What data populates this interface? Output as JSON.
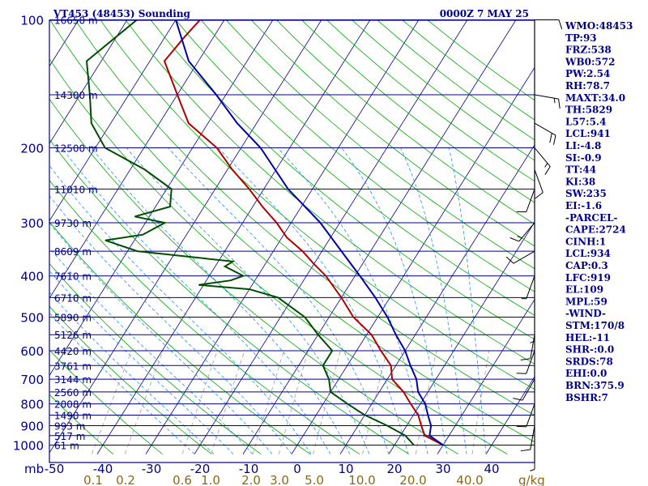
{
  "header": {
    "station": "VT453 (48453) Sounding",
    "time": "0000Z  7 MAY 25"
  },
  "chart_data": {
    "type": "skew-t",
    "y_scale": "log",
    "ylim": [
      1050,
      100
    ],
    "xlim": [
      -50,
      50
    ],
    "xlabel_prefix": "mb",
    "pressure_ticks": [
      {
        "value": 100,
        "label": "100"
      },
      {
        "value": 200,
        "label": "200"
      },
      {
        "value": 300,
        "label": "300"
      },
      {
        "value": 400,
        "label": "400"
      },
      {
        "value": 500,
        "label": "500"
      },
      {
        "value": 600,
        "label": "600"
      },
      {
        "value": 700,
        "label": "700"
      },
      {
        "value": 800,
        "label": "800"
      },
      {
        "value": 900,
        "label": "900"
      },
      {
        "value": 1000,
        "label": "1000"
      }
    ],
    "height_levels": [
      {
        "p": 100,
        "label": "16650 m"
      },
      {
        "p": 150,
        "label": "14300 m"
      },
      {
        "p": 200,
        "label": "12500 m"
      },
      {
        "p": 250,
        "label": "11010 m"
      },
      {
        "p": 300,
        "label": "9730 m"
      },
      {
        "p": 350,
        "label": "8609 m"
      },
      {
        "p": 400,
        "label": "7610 m"
      },
      {
        "p": 450,
        "label": "6710 m"
      },
      {
        "p": 500,
        "label": "5890 m"
      },
      {
        "p": 550,
        "label": "5126 m"
      },
      {
        "p": 600,
        "label": "4420 m"
      },
      {
        "p": 650,
        "label": "3761 m"
      },
      {
        "p": 700,
        "label": "3144 m"
      },
      {
        "p": 750,
        "label": "2560 m"
      },
      {
        "p": 800,
        "label": "2008 m"
      },
      {
        "p": 850,
        "label": "1490 m"
      },
      {
        "p": 900,
        "label": "993 m"
      },
      {
        "p": 950,
        "label": "517 m"
      },
      {
        "p": 1000,
        "label": "61 m"
      }
    ],
    "temp_ticks": [
      {
        "value": -50,
        "label": "-50"
      },
      {
        "value": -40,
        "label": "-40"
      },
      {
        "value": -30,
        "label": "-30"
      },
      {
        "value": -20,
        "label": "-20"
      },
      {
        "value": -10,
        "label": "-10"
      },
      {
        "value": 0,
        "label": "0"
      },
      {
        "value": 10,
        "label": "10"
      },
      {
        "value": 20,
        "label": "20"
      },
      {
        "value": 30,
        "label": "30"
      },
      {
        "value": 40,
        "label": "40"
      }
    ],
    "mixing_ratio_ticks": [
      {
        "value": 0.1,
        "label": "0.1"
      },
      {
        "value": 0.2,
        "label": "0.2"
      },
      {
        "value": 0.6,
        "label": "0.6"
      },
      {
        "value": 1.0,
        "label": "1.0"
      },
      {
        "value": 2.0,
        "label": "2.0"
      },
      {
        "value": 3.0,
        "label": "3.0"
      },
      {
        "value": 5.0,
        "label": "5.0"
      },
      {
        "value": 10.0,
        "label": "10.0"
      },
      {
        "value": 20.0,
        "label": "20.0"
      },
      {
        "value": 40.0,
        "label": "40.0"
      }
    ],
    "mixing_ratio_unit": "g/kg",
    "series": [
      {
        "kind": "temperature",
        "color": "#b20000",
        "points": [
          [
            100,
            -75
          ],
          [
            110,
            -76
          ],
          [
            125,
            -77
          ],
          [
            150,
            -70
          ],
          [
            175,
            -64
          ],
          [
            200,
            -55
          ],
          [
            225,
            -49
          ],
          [
            250,
            -43
          ],
          [
            275,
            -38
          ],
          [
            300,
            -33
          ],
          [
            325,
            -29
          ],
          [
            350,
            -24
          ],
          [
            375,
            -20
          ],
          [
            400,
            -16
          ],
          [
            450,
            -10
          ],
          [
            500,
            -5
          ],
          [
            550,
            1
          ],
          [
            600,
            5
          ],
          [
            650,
            9
          ],
          [
            700,
            11
          ],
          [
            750,
            15
          ],
          [
            800,
            18
          ],
          [
            850,
            21
          ],
          [
            900,
            23
          ],
          [
            950,
            25
          ],
          [
            1000,
            30
          ]
        ]
      },
      {
        "kind": "dewpoint",
        "color": "#004d00",
        "points": [
          [
            100,
            -88
          ],
          [
            125,
            -93
          ],
          [
            150,
            -88
          ],
          [
            175,
            -84
          ],
          [
            200,
            -78
          ],
          [
            225,
            -67
          ],
          [
            250,
            -59
          ],
          [
            275,
            -57
          ],
          [
            290,
            -63
          ],
          [
            300,
            -56
          ],
          [
            320,
            -59
          ],
          [
            330,
            -66
          ],
          [
            350,
            -58
          ],
          [
            370,
            -37
          ],
          [
            380,
            -38
          ],
          [
            400,
            -33
          ],
          [
            410,
            -35
          ],
          [
            420,
            -41
          ],
          [
            430,
            -30
          ],
          [
            450,
            -23
          ],
          [
            500,
            -15
          ],
          [
            550,
            -10
          ],
          [
            600,
            -5
          ],
          [
            650,
            -5
          ],
          [
            700,
            -2
          ],
          [
            750,
            0
          ],
          [
            800,
            5
          ],
          [
            850,
            10
          ],
          [
            900,
            16
          ],
          [
            950,
            21
          ],
          [
            1000,
            24
          ]
        ]
      },
      {
        "kind": "parcel",
        "color": "#0000aa",
        "points": [
          [
            100,
            -80
          ],
          [
            125,
            -72
          ],
          [
            150,
            -62
          ],
          [
            175,
            -54
          ],
          [
            200,
            -46
          ],
          [
            250,
            -35
          ],
          [
            300,
            -24
          ],
          [
            350,
            -16
          ],
          [
            400,
            -9
          ],
          [
            450,
            -3
          ],
          [
            500,
            2
          ],
          [
            550,
            6
          ],
          [
            600,
            10
          ],
          [
            650,
            13
          ],
          [
            700,
            16
          ],
          [
            750,
            18
          ],
          [
            800,
            21
          ],
          [
            850,
            23
          ],
          [
            900,
            25
          ],
          [
            950,
            26
          ],
          [
            1000,
            30
          ]
        ]
      }
    ],
    "wind_barbs": [
      {
        "p": 100,
        "dir": 90,
        "kt": 10
      },
      {
        "p": 150,
        "dir": 100,
        "kt": 15
      },
      {
        "p": 175,
        "dir": 120,
        "kt": 20
      },
      {
        "p": 200,
        "dir": 140,
        "kt": 15
      },
      {
        "p": 225,
        "dir": 160,
        "kt": 10
      },
      {
        "p": 250,
        "dir": 200,
        "kt": 10
      },
      {
        "p": 300,
        "dir": 220,
        "kt": 15
      },
      {
        "p": 350,
        "dir": 240,
        "kt": 10
      },
      {
        "p": 400,
        "dir": 200,
        "kt": 5
      },
      {
        "p": 500,
        "dir": 180,
        "kt": 5
      },
      {
        "p": 550,
        "dir": 190,
        "kt": 10
      },
      {
        "p": 600,
        "dir": 200,
        "kt": 10
      },
      {
        "p": 700,
        "dir": 210,
        "kt": 10
      },
      {
        "p": 800,
        "dir": 200,
        "kt": 10
      },
      {
        "p": 900,
        "dir": 190,
        "kt": 10
      },
      {
        "p": 1000,
        "dir": 180,
        "kt": 5
      }
    ]
  },
  "indices": [
    "WMO:48453",
    "TP:93",
    "FRZ:538",
    "WB0:572",
    "PW:2.54",
    "RH:78.7",
    "MAXT:34.0",
    "TH:5829",
    "L57:5.4",
    "LCL:941",
    "LI:-4.8",
    "SI:-0.9",
    "TT:44",
    "KI:38",
    "SW:235",
    "EI:-1.6",
    "-PARCEL-",
    "CAPE:2724",
    "CINH:1",
    "LCL:934",
    "CAP:0.3",
    "LFC:919",
    "EL:109",
    "MPL:59",
    "-WIND-",
    "STM:170/8",
    "HEL:-11",
    "SHR-:0.0",
    "SRDS:78",
    "EHI:0.0",
    "BRN:375.9",
    "BSHR:7"
  ],
  "colors": {
    "frame": "#00008b",
    "isobar": "#00008b",
    "isotherm": "#00008b",
    "dry_adiabat": "#00aa00",
    "moist_adiabat": "#1e90ff",
    "mixing_ratio": "#a0a0a0",
    "wind_barb": "#000000",
    "mr_label": "#8b6914"
  }
}
